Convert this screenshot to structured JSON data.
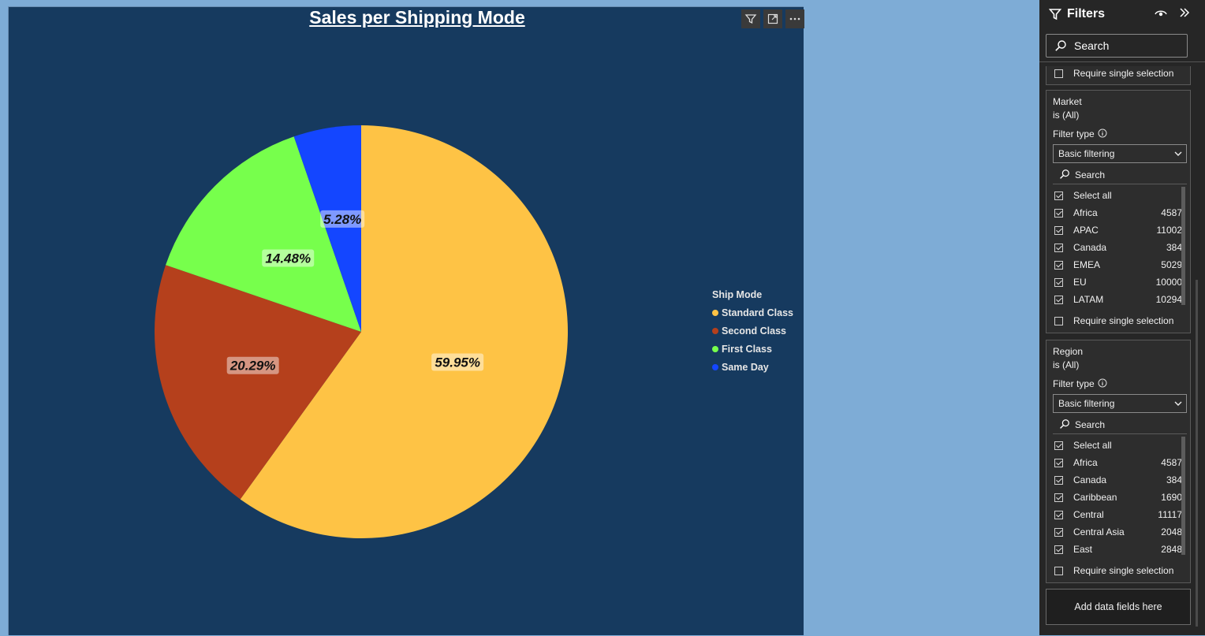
{
  "chart_title": "Sales per Shipping Mode",
  "chart_data": {
    "type": "pie",
    "title": "Sales per Shipping Mode",
    "legend_title": "Ship Mode",
    "legend_position": "right",
    "categories": [
      "Standard Class",
      "Second Class",
      "First Class",
      "Same Day"
    ],
    "values": [
      59.95,
      20.29,
      14.48,
      5.28
    ],
    "labels": [
      "59.95%",
      "20.29%",
      "14.48%",
      "5.28%"
    ],
    "colors": [
      "#fec345",
      "#b5401c",
      "#77ff4c",
      "#1446ff"
    ]
  },
  "visual_header": {
    "icons": [
      "filter-icon",
      "focus-mode-icon",
      "more-options-icon"
    ]
  },
  "filters_pane": {
    "title": "Filters",
    "search_placeholder": "Search",
    "top_require_single": "Require single selection",
    "cards": [
      {
        "field": "Market",
        "condition": "is (All)",
        "filter_type_label": "Filter type",
        "filter_type_value": "Basic filtering",
        "search_placeholder": "Search",
        "items": [
          {
            "label": "Select all",
            "count": ""
          },
          {
            "label": "Africa",
            "count": "4587"
          },
          {
            "label": "APAC",
            "count": "11002"
          },
          {
            "label": "Canada",
            "count": "384"
          },
          {
            "label": "EMEA",
            "count": "5029"
          },
          {
            "label": "EU",
            "count": "10000"
          },
          {
            "label": "LATAM",
            "count": "10294"
          }
        ],
        "require_single": "Require single selection"
      },
      {
        "field": "Region",
        "condition": "is (All)",
        "filter_type_label": "Filter type",
        "filter_type_value": "Basic filtering",
        "search_placeholder": "Search",
        "items": [
          {
            "label": "Select all",
            "count": ""
          },
          {
            "label": "Africa",
            "count": "4587"
          },
          {
            "label": "Canada",
            "count": "384"
          },
          {
            "label": "Caribbean",
            "count": "1690"
          },
          {
            "label": "Central",
            "count": "11117"
          },
          {
            "label": "Central Asia",
            "count": "2048"
          },
          {
            "label": "East",
            "count": "2848"
          }
        ],
        "require_single": "Require single selection"
      }
    ],
    "add_data_fields": "Add data fields here"
  }
}
